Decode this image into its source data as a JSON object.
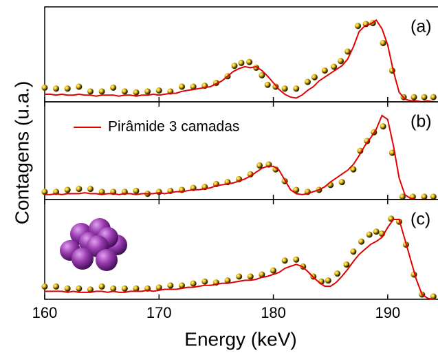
{
  "chart_data": [
    {
      "type": "line",
      "annotation": "(a)",
      "xlim": [
        160,
        194.4
      ],
      "ylim": [
        0,
        1
      ],
      "series": [
        {
          "type": "scatter",
          "color": "#e8c020",
          "x": [
            160,
            161,
            162,
            163,
            164,
            165,
            166,
            167,
            168,
            169,
            170,
            171,
            172,
            173,
            174,
            175,
            176,
            176.6,
            177.2,
            177.9,
            178.5,
            179,
            179.5,
            180.2,
            181,
            182,
            183,
            183.6,
            184.5,
            185.3,
            185.9,
            186.5,
            187.4,
            188.1,
            188.7,
            189.6,
            190.4,
            191.4,
            192.3,
            193.2,
            194
          ],
          "values": [
            0.12,
            0.11,
            0.11,
            0.13,
            0.08,
            0.08,
            0.12,
            0.08,
            0.07,
            0.08,
            0.09,
            0.08,
            0.13,
            0.13,
            0.14,
            0.17,
            0.24,
            0.35,
            0.38,
            0.39,
            0.33,
            0.25,
            0.15,
            0.13,
            0.11,
            0.11,
            0.18,
            0.23,
            0.3,
            0.34,
            0.4,
            0.5,
            0.77,
            0.79,
            0.8,
            0.59,
            0.3,
            0.02,
            0.02,
            0.02,
            0.02
          ]
        },
        {
          "type": "line",
          "color": "#e00000",
          "x": [
            160,
            160.5,
            161,
            161.5,
            162,
            162.5,
            163,
            163.5,
            164,
            164.5,
            165,
            165.5,
            166,
            166.5,
            167,
            167.5,
            168,
            168.5,
            169,
            169.5,
            170,
            170.5,
            171,
            171.5,
            172,
            172.5,
            173,
            173.5,
            174,
            174.5,
            175,
            175.5,
            176,
            176.5,
            177,
            177.5,
            178,
            178.5,
            179,
            179.5,
            180,
            180.5,
            181,
            181.5,
            182,
            182.5,
            183,
            183.5,
            184,
            184.5,
            185,
            185.5,
            186,
            186.5,
            187,
            187.5,
            188,
            188.5,
            189,
            189.5,
            190,
            190.5,
            191,
            191.5,
            192,
            192.5,
            193,
            193.5,
            194
          ],
          "values": [
            0.08,
            0.08,
            0.07,
            0.08,
            0.07,
            0.07,
            0.08,
            0.07,
            0.07,
            0.06,
            0.07,
            0.07,
            0.07,
            0.06,
            0.07,
            0.07,
            0.06,
            0.07,
            0.07,
            0.08,
            0.07,
            0.08,
            0.09,
            0.09,
            0.11,
            0.12,
            0.13,
            0.14,
            0.15,
            0.16,
            0.19,
            0.22,
            0.27,
            0.32,
            0.35,
            0.37,
            0.36,
            0.37,
            0.33,
            0.27,
            0.2,
            0.13,
            0.08,
            0.05,
            0.04,
            0.07,
            0.12,
            0.16,
            0.22,
            0.26,
            0.3,
            0.34,
            0.38,
            0.45,
            0.58,
            0.74,
            0.8,
            0.82,
            0.86,
            0.77,
            0.6,
            0.32,
            0.1,
            0.03,
            0.01,
            0.01,
            0,
            0.01,
            0
          ]
        }
      ]
    },
    {
      "type": "line",
      "annotation": "(b)",
      "ylabel": "Contagens (u.a.)",
      "xlim": [
        160,
        194.4
      ],
      "ylim": [
        0,
        1
      ],
      "series": [
        {
          "type": "scatter",
          "color": "#e8c020",
          "x": [
            160,
            161,
            162,
            163,
            164,
            165,
            166,
            167,
            168,
            169,
            170,
            171,
            172,
            173,
            174,
            175,
            176,
            177,
            178,
            178.8,
            179.6,
            180.2,
            181,
            182,
            183,
            184,
            185,
            186,
            187,
            187.6,
            188.2,
            188.8,
            189.6,
            190.4,
            191.3,
            192.2,
            193.2,
            194
          ],
          "values": [
            0.05,
            0.05,
            0.07,
            0.08,
            0.08,
            0.05,
            0.05,
            0.05,
            0.06,
            0.03,
            0.05,
            0.06,
            0.07,
            0.09,
            0.1,
            0.13,
            0.15,
            0.18,
            0.23,
            0.32,
            0.33,
            0.28,
            0.16,
            0.07,
            0.05,
            0.07,
            0.12,
            0.15,
            0.28,
            0.47,
            0.57,
            0.66,
            0.72,
            0.45,
            0,
            0,
            0,
            0
          ]
        },
        {
          "type": "line",
          "name": "Pirâmide 3 camadas",
          "color": "#e00000",
          "x": [
            160,
            160.5,
            161,
            161.5,
            162,
            162.5,
            163,
            163.5,
            164,
            164.5,
            165,
            165.5,
            166,
            166.5,
            167,
            167.5,
            168,
            168.5,
            169,
            169.5,
            170,
            170.5,
            171,
            171.5,
            172,
            172.5,
            173,
            173.5,
            174,
            174.5,
            175,
            175.5,
            176,
            176.5,
            177,
            177.5,
            178,
            178.5,
            179,
            179.5,
            180,
            180.5,
            181,
            181.5,
            182,
            182.5,
            183,
            183.5,
            184,
            184.5,
            185,
            185.5,
            186,
            186.5,
            187,
            187.5,
            188,
            188.5,
            189,
            189.5,
            190,
            190.5,
            191,
            191.5,
            192,
            192.5,
            193,
            193.5,
            194
          ],
          "values": [
            0.05,
            0.05,
            0.06,
            0.05,
            0.06,
            0.06,
            0.06,
            0.07,
            0.06,
            0.06,
            0.05,
            0.06,
            0.06,
            0.05,
            0.06,
            0.06,
            0.05,
            0.06,
            0.06,
            0.06,
            0.07,
            0.06,
            0.07,
            0.08,
            0.08,
            0.09,
            0.1,
            0.1,
            0.11,
            0.12,
            0.14,
            0.15,
            0.16,
            0.17,
            0.19,
            0.21,
            0.24,
            0.28,
            0.32,
            0.34,
            0.34,
            0.3,
            0.2,
            0.1,
            0.06,
            0.05,
            0.06,
            0.08,
            0.1,
            0.13,
            0.18,
            0.22,
            0.26,
            0.3,
            0.36,
            0.45,
            0.55,
            0.63,
            0.72,
            0.86,
            0.82,
            0.55,
            0.22,
            0.05,
            0.01,
            0,
            0,
            0,
            0
          ]
        }
      ]
    },
    {
      "type": "line",
      "annotation": "(c)",
      "xlabel": "Energy (keV)",
      "xlim": [
        160,
        194.4
      ],
      "ylim": [
        0,
        1
      ],
      "xticks": [
        160,
        170,
        180,
        190
      ],
      "series": [
        {
          "type": "scatter",
          "color": "#e8c020",
          "x": [
            160,
            161,
            162,
            163,
            164,
            165,
            166,
            167,
            168,
            169,
            170,
            171,
            172,
            173,
            174,
            175,
            176,
            177,
            178,
            179,
            180,
            181,
            182,
            182.6,
            183.5,
            184.2,
            184.8,
            185.6,
            186.4,
            187,
            187.7,
            188.4,
            189,
            189.5,
            190.3,
            191,
            191.6,
            192.3,
            193,
            194
          ],
          "values": [
            0.1,
            0.1,
            0.08,
            0.08,
            0.07,
            0.1,
            0.08,
            0.08,
            0.08,
            0.08,
            0.09,
            0.11,
            0.11,
            0.13,
            0.15,
            0.14,
            0.16,
            0.2,
            0.2,
            0.22,
            0.26,
            0.36,
            0.37,
            0.3,
            0.2,
            0.15,
            0.16,
            0.23,
            0.32,
            0.45,
            0.55,
            0.62,
            0.65,
            0.63,
            0.78,
            0.75,
            0.52,
            0.22,
            0.02,
            0
          ]
        },
        {
          "type": "line",
          "color": "#e00000",
          "x": [
            160,
            160.5,
            161,
            161.5,
            162,
            162.5,
            163,
            163.5,
            164,
            164.5,
            165,
            165.5,
            166,
            166.5,
            167,
            167.5,
            168,
            168.5,
            169,
            169.5,
            170,
            170.5,
            171,
            171.5,
            172,
            172.5,
            173,
            173.5,
            174,
            174.5,
            175,
            175.5,
            176,
            176.5,
            177,
            177.5,
            178,
            178.5,
            179,
            179.5,
            180,
            180.5,
            181,
            181.5,
            182,
            182.5,
            183,
            183.5,
            184,
            184.5,
            185,
            185.5,
            186,
            186.5,
            187,
            187.5,
            188,
            188.5,
            189,
            189.5,
            190,
            190.5,
            191,
            191.5,
            192,
            192.5,
            193,
            193.5,
            194
          ],
          "values": [
            0.08,
            0.08,
            0.08,
            0.08,
            0.07,
            0.08,
            0.07,
            0.07,
            0.07,
            0.08,
            0.08,
            0.07,
            0.08,
            0.07,
            0.07,
            0.08,
            0.08,
            0.08,
            0.09,
            0.08,
            0.09,
            0.1,
            0.1,
            0.1,
            0.11,
            0.12,
            0.12,
            0.13,
            0.14,
            0.14,
            0.15,
            0.16,
            0.16,
            0.17,
            0.18,
            0.19,
            0.19,
            0.2,
            0.22,
            0.23,
            0.25,
            0.27,
            0.31,
            0.33,
            0.35,
            0.33,
            0.28,
            0.22,
            0.17,
            0.13,
            0.13,
            0.17,
            0.23,
            0.3,
            0.38,
            0.45,
            0.5,
            0.55,
            0.58,
            0.62,
            0.72,
            0.8,
            0.8,
            0.6,
            0.4,
            0.2,
            0.05,
            0.01,
            0
          ]
        }
      ]
    }
  ]
}
